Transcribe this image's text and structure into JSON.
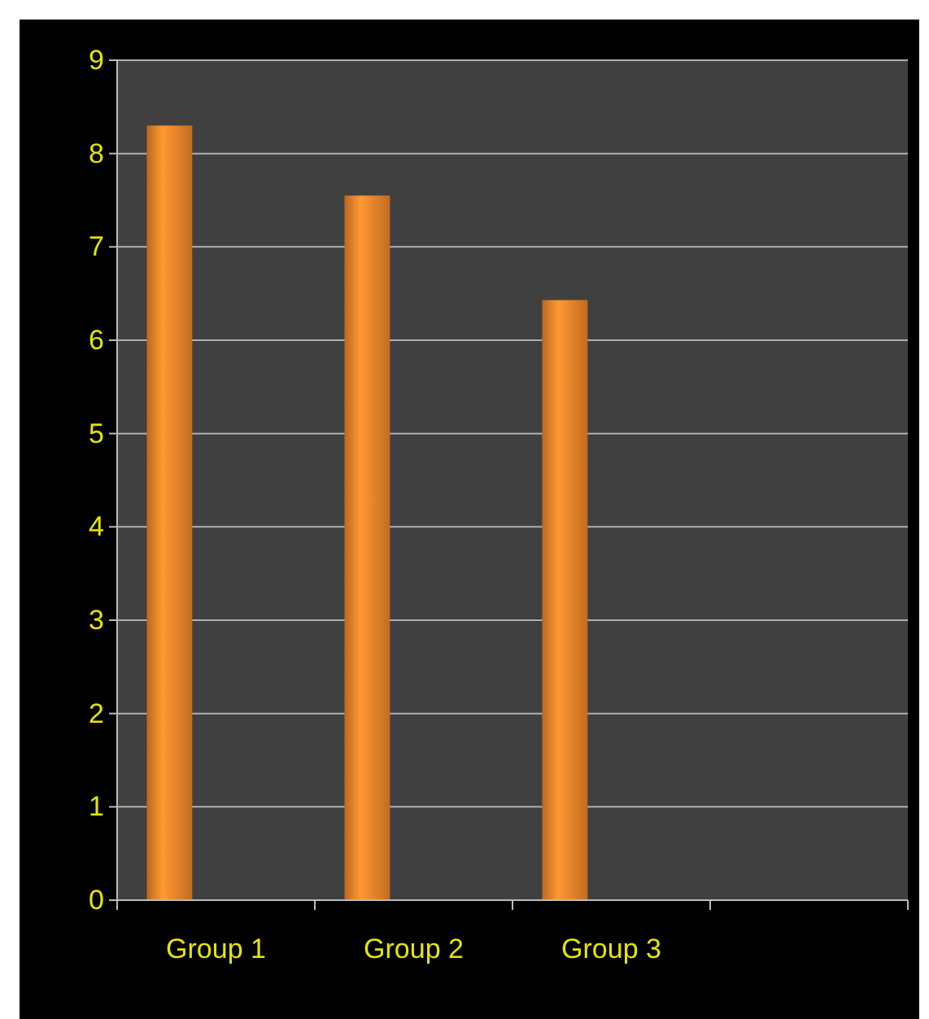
{
  "chart_data": {
    "type": "bar",
    "categories": [
      "Group 1",
      "Group 2",
      "Group 3",
      null
    ],
    "values": [
      8.3,
      7.55,
      6.43,
      null
    ],
    "color": "#e8802a",
    "ylim": [
      0,
      9
    ],
    "yticks": [
      0,
      1,
      2,
      3,
      4,
      5,
      6,
      7,
      8,
      9
    ],
    "grid": "y"
  }
}
